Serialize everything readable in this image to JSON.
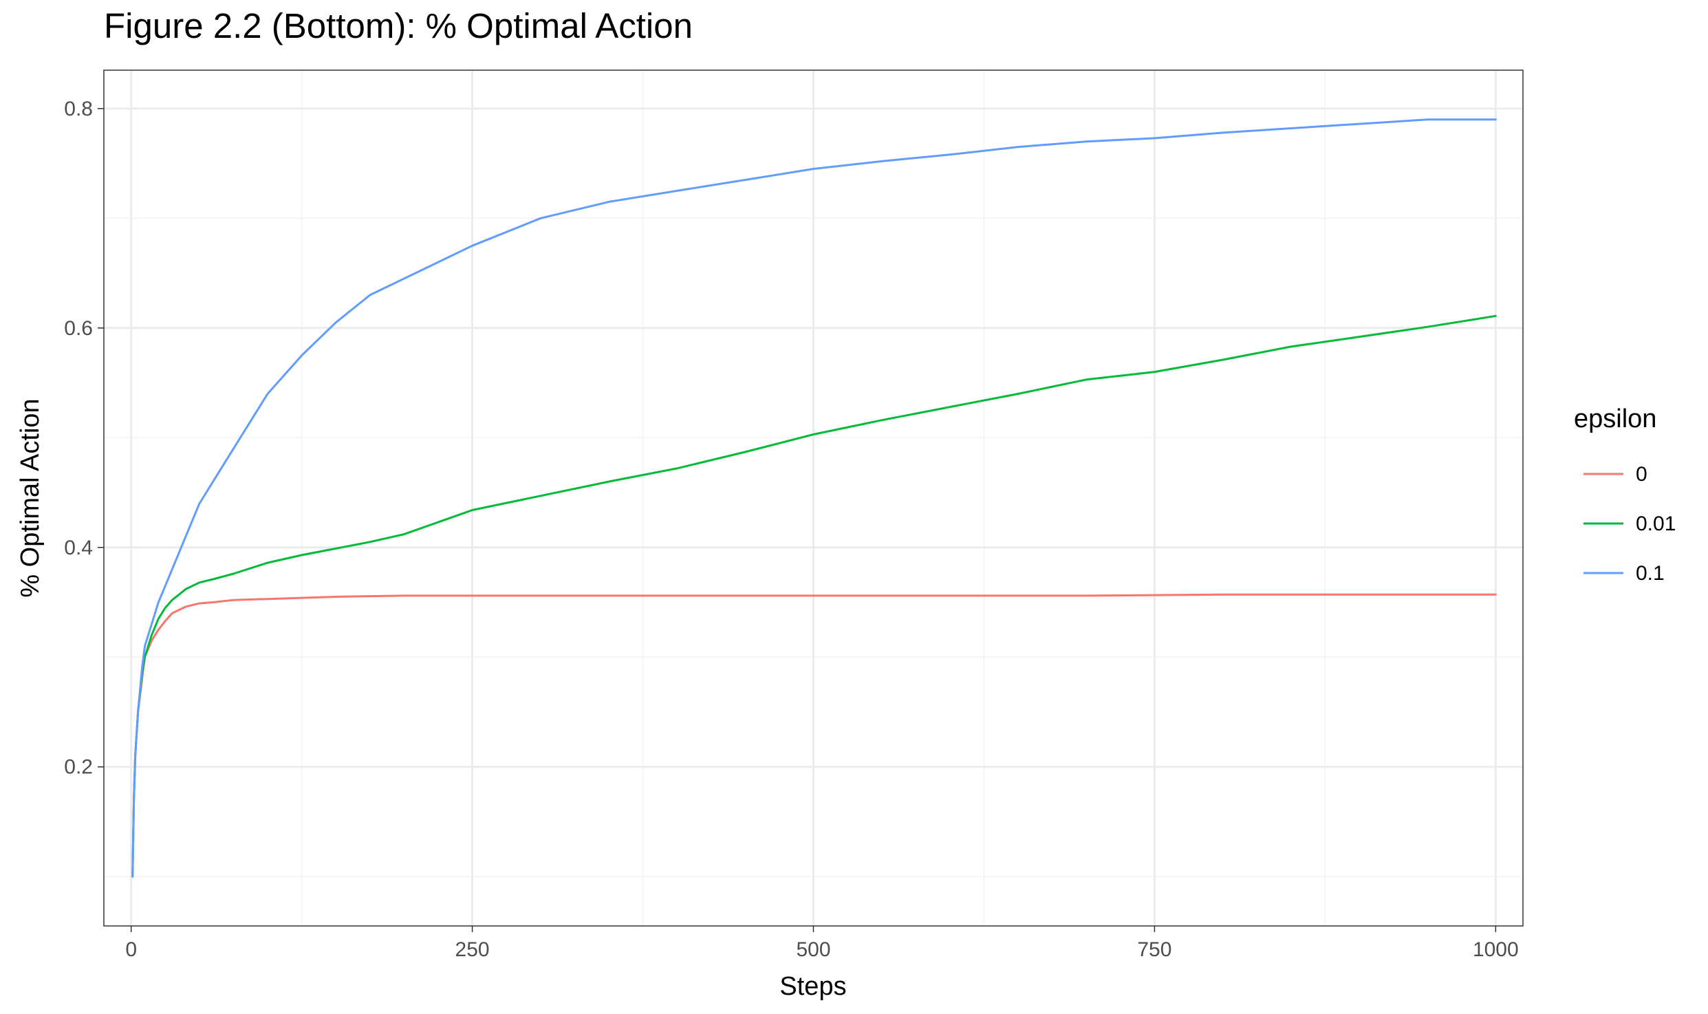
{
  "chart_data": {
    "type": "line",
    "title": "Figure 2.2 (Bottom): % Optimal Action",
    "xlabel": "Steps",
    "ylabel": "% Optimal Action",
    "xlim": [
      -20,
      1020
    ],
    "ylim": [
      0.055,
      0.835
    ],
    "xticks": [
      0,
      250,
      500,
      750,
      1000
    ],
    "xtick_labels": [
      "0",
      "250",
      "500",
      "750",
      "1000"
    ],
    "yticks": [
      0.2,
      0.4,
      0.6,
      0.8
    ],
    "ytick_labels": [
      "0.2",
      "0.4",
      "0.6",
      "0.8"
    ],
    "grid": true,
    "legend": {
      "title": "epsilon",
      "position": "right"
    },
    "series": [
      {
        "name": "0",
        "color": "#F8766D",
        "x": [
          1,
          2,
          3,
          5,
          8,
          10,
          15,
          20,
          25,
          30,
          40,
          50,
          60,
          75,
          100,
          125,
          150,
          200,
          300,
          400,
          500,
          600,
          700,
          800,
          900,
          1000
        ],
        "y": [
          0.1,
          0.17,
          0.21,
          0.25,
          0.28,
          0.3,
          0.315,
          0.325,
          0.333,
          0.34,
          0.346,
          0.349,
          0.35,
          0.352,
          0.353,
          0.354,
          0.355,
          0.356,
          0.356,
          0.356,
          0.356,
          0.356,
          0.356,
          0.357,
          0.357,
          0.357
        ]
      },
      {
        "name": "0.01",
        "color": "#00BA38",
        "x": [
          1,
          2,
          3,
          5,
          8,
          10,
          15,
          20,
          25,
          30,
          40,
          50,
          60,
          75,
          100,
          125,
          150,
          175,
          200,
          250,
          300,
          350,
          400,
          450,
          500,
          550,
          600,
          650,
          700,
          750,
          800,
          850,
          900,
          950,
          1000
        ],
        "y": [
          0.1,
          0.17,
          0.21,
          0.25,
          0.285,
          0.3,
          0.32,
          0.335,
          0.345,
          0.352,
          0.362,
          0.368,
          0.371,
          0.376,
          0.386,
          0.393,
          0.399,
          0.405,
          0.412,
          0.434,
          0.447,
          0.46,
          0.472,
          0.487,
          0.503,
          0.516,
          0.528,
          0.54,
          0.553,
          0.56,
          0.571,
          0.583,
          0.592,
          0.601,
          0.611
        ]
      },
      {
        "name": "0.1",
        "color": "#619CFF",
        "x": [
          1,
          2,
          3,
          5,
          8,
          10,
          15,
          20,
          25,
          30,
          40,
          50,
          60,
          75,
          100,
          125,
          150,
          175,
          200,
          250,
          300,
          350,
          400,
          450,
          500,
          550,
          600,
          650,
          700,
          750,
          800,
          850,
          900,
          950,
          1000
        ],
        "y": [
          0.1,
          0.17,
          0.21,
          0.25,
          0.29,
          0.31,
          0.33,
          0.35,
          0.365,
          0.38,
          0.41,
          0.44,
          0.46,
          0.49,
          0.54,
          0.575,
          0.605,
          0.63,
          0.645,
          0.675,
          0.7,
          0.715,
          0.725,
          0.735,
          0.745,
          0.752,
          0.758,
          0.765,
          0.77,
          0.773,
          0.778,
          0.782,
          0.786,
          0.79,
          0.79
        ]
      }
    ]
  }
}
